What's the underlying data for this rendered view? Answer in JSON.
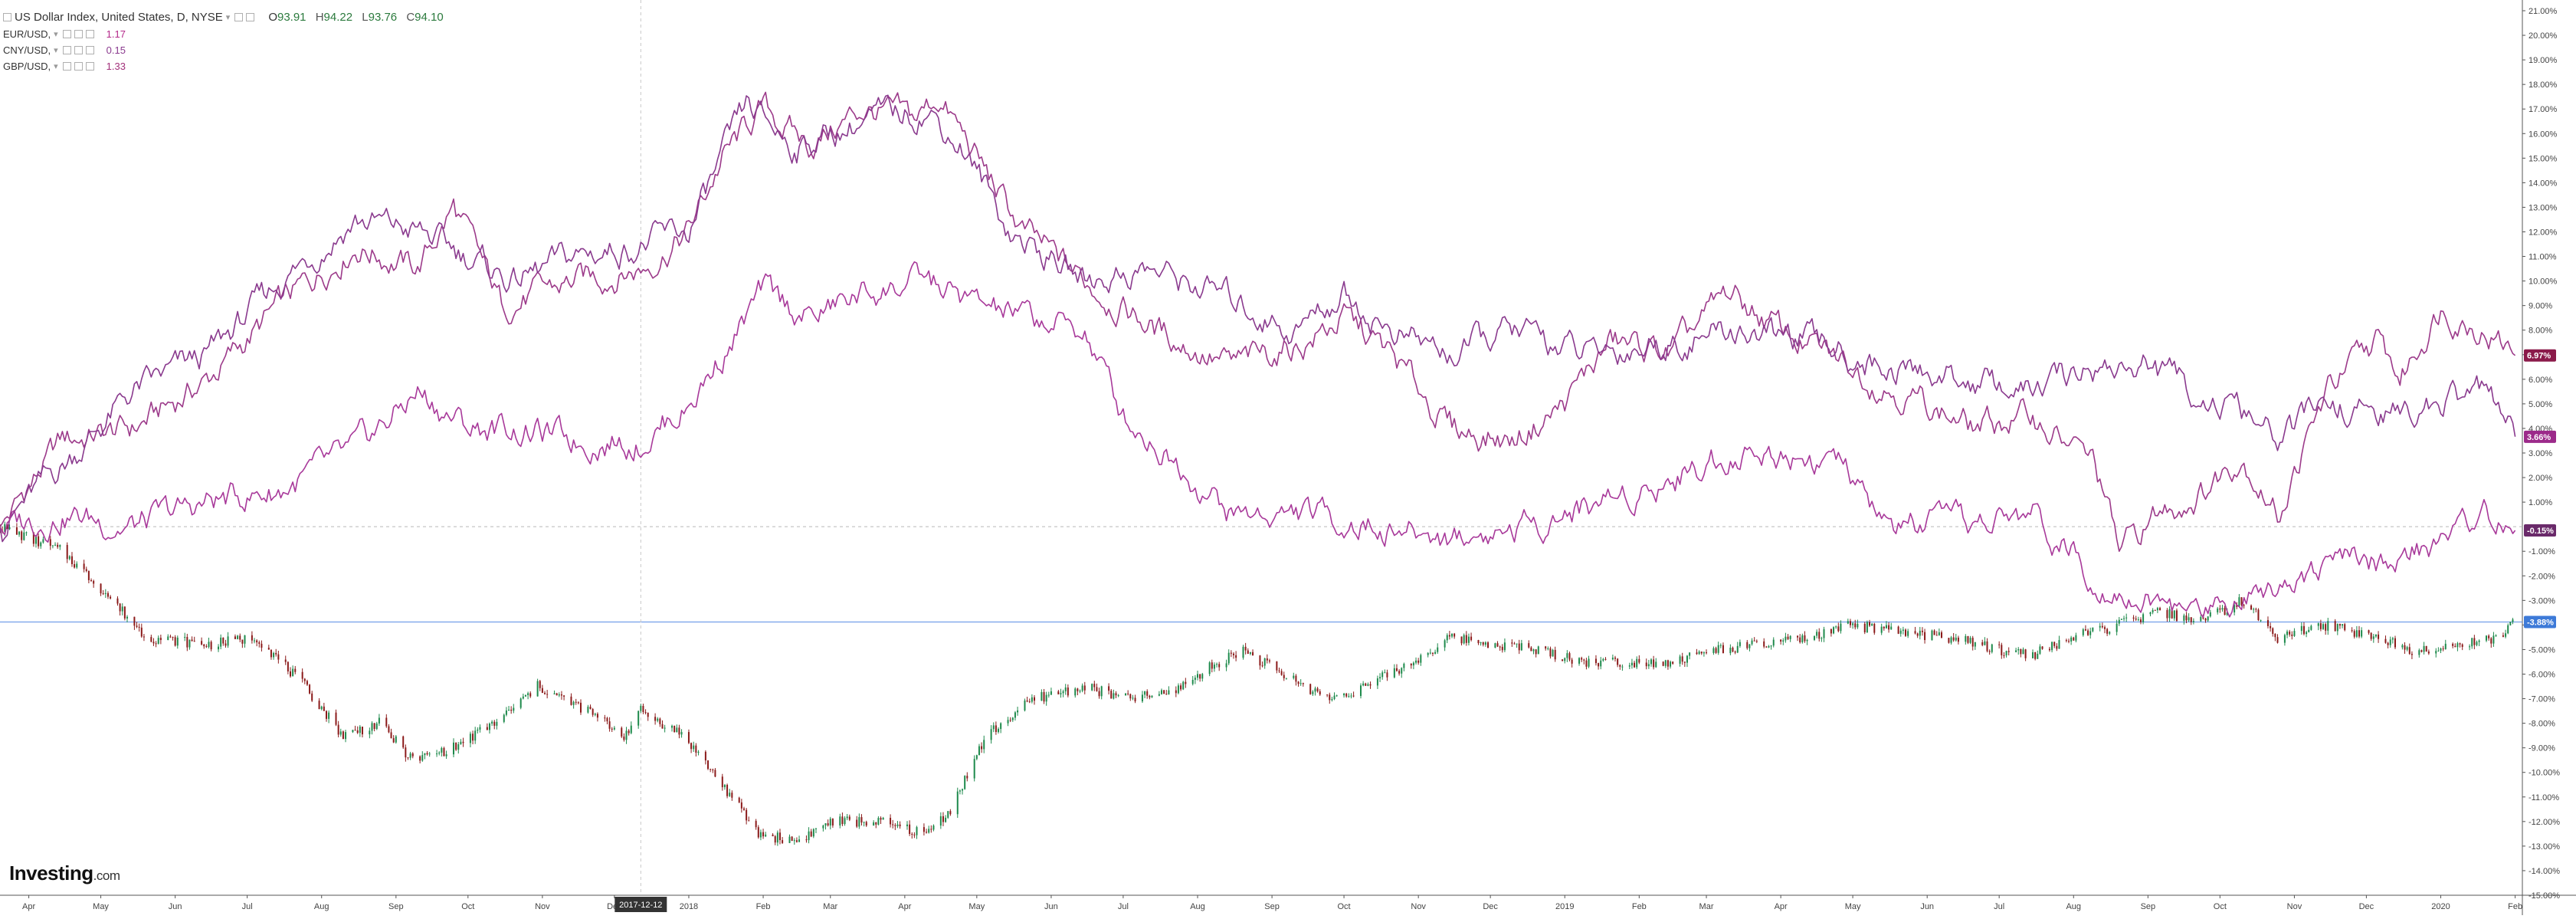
{
  "legend": {
    "main_title": "US Dollar Index, United States, D, NYSE",
    "ohlc": {
      "open_label": "O",
      "open": "93.91",
      "high_label": "H",
      "high": "94.22",
      "low_label": "L",
      "low": "93.76",
      "close_label": "C",
      "close": "94.10"
    },
    "items": [
      {
        "label": "EUR/USD,",
        "value": "1.17",
        "color": "#b4298a"
      },
      {
        "label": "CNY/USD,",
        "value": "0.15",
        "color": "#8a3a8e"
      },
      {
        "label": "GBP/USD,",
        "value": "1.33",
        "color": "#a2307a"
      }
    ]
  },
  "brand": {
    "name": "Investing",
    "suffix": ".com"
  },
  "crosshair": {
    "date_label": "2017-12-12"
  },
  "colors": {
    "up": "#1e8a4c",
    "down": "#8b1a1a",
    "series": [
      "#9c3a8a",
      "#8a3a8e",
      "#a8399a"
    ],
    "baseline": "#5b8ee6"
  },
  "chart_data": {
    "type": "line",
    "y_unit": "%",
    "ylim": [
      -15,
      21
    ],
    "y_ticks": [
      "21.00%",
      "20.00%",
      "19.00%",
      "18.00%",
      "17.00%",
      "16.00%",
      "15.00%",
      "14.00%",
      "13.00%",
      "12.00%",
      "11.00%",
      "10.00%",
      "9.00%",
      "8.00%",
      "7.00%",
      "6.00%",
      "5.00%",
      "4.00%",
      "3.00%",
      "2.00%",
      "1.00%",
      "-1.00%",
      "-2.00%",
      "-3.00%",
      "-4.00%",
      "-5.00%",
      "-6.00%",
      "-7.00%",
      "-8.00%",
      "-9.00%",
      "-10.00%",
      "-11.00%",
      "-12.00%",
      "-13.00%",
      "-14.00%",
      "-15.00%"
    ],
    "x_ticks": [
      "Apr",
      "May",
      "Jun",
      "Jul",
      "Aug",
      "Sep",
      "Oct",
      "Nov",
      "Dec",
      "2018",
      "Feb",
      "Mar",
      "Apr",
      "May",
      "Jun",
      "Jul",
      "Aug",
      "Sep",
      "Oct",
      "Nov",
      "Dec",
      "2019",
      "Feb",
      "Mar",
      "Apr",
      "May",
      "Jun",
      "Jul",
      "Aug",
      "Sep",
      "Oct",
      "Nov",
      "Dec",
      "2020",
      "Feb"
    ],
    "price_labels": [
      {
        "text": "6.97%",
        "value": 6.97,
        "color": "#8b1a4a"
      },
      {
        "text": "3.66%",
        "value": 3.66,
        "color": "#9c2a8a"
      },
      {
        "text": "-0.15%",
        "value": -0.15,
        "color": "#6a2a6a"
      },
      {
        "text": "-3.88%",
        "value": -3.88,
        "color": "#3d7ad8"
      }
    ],
    "series": [
      {
        "name": "GBP/USD",
        "style": "line",
        "x": [
          "2017-03-20",
          "2017-04-15",
          "2017-05-15",
          "2017-06-15",
          "2017-07-15",
          "2017-08-15",
          "2017-09-10",
          "2017-09-25",
          "2017-10-15",
          "2017-11-15",
          "2017-12-12",
          "2018-01-01",
          "2018-01-15",
          "2018-02-01",
          "2018-02-20",
          "2018-03-15",
          "2018-04-05",
          "2018-04-15",
          "2018-05-01",
          "2018-05-20",
          "2018-06-15",
          "2018-07-15",
          "2018-08-15",
          "2018-09-15",
          "2018-10-01",
          "2018-10-20",
          "2018-11-15",
          "2018-12-10",
          "2019-01-01",
          "2019-01-20",
          "2019-02-15",
          "2019-03-10",
          "2019-04-01",
          "2019-04-20",
          "2019-05-10",
          "2019-06-01",
          "2019-06-20",
          "2019-07-15",
          "2019-08-10",
          "2019-08-20",
          "2019-09-05",
          "2019-09-25",
          "2019-10-10",
          "2019-10-25",
          "2019-11-15",
          "2019-12-05",
          "2019-12-15",
          "2020-01-01",
          "2020-01-20",
          "2020-02-01"
        ],
        "values": [
          0.0,
          3.5,
          4.0,
          6.0,
          9.0,
          11.5,
          10.5,
          13.0,
          9.0,
          10.0,
          10.5,
          12.0,
          15.0,
          17.0,
          15.5,
          17.0,
          16.5,
          17.5,
          15.0,
          12.0,
          10.0,
          8.0,
          6.5,
          7.5,
          8.5,
          7.0,
          4.0,
          3.5,
          5.0,
          7.5,
          7.0,
          9.5,
          8.0,
          7.0,
          6.0,
          5.0,
          4.0,
          4.5,
          2.5,
          -1.0,
          0.5,
          1.5,
          3.0,
          0.5,
          5.5,
          7.5,
          6.0,
          9.0,
          8.0,
          6.97
        ]
      },
      {
        "name": "EUR/USD",
        "style": "line",
        "x": [
          "2017-03-20",
          "2017-04-15",
          "2017-05-15",
          "2017-06-15",
          "2017-07-15",
          "2017-08-15",
          "2017-09-10",
          "2017-10-01",
          "2017-10-20",
          "2017-11-15",
          "2017-12-12",
          "2018-01-01",
          "2018-01-25",
          "2018-02-15",
          "2018-03-15",
          "2018-04-10",
          "2018-04-25",
          "2018-05-15",
          "2018-06-15",
          "2018-07-10",
          "2018-08-10",
          "2018-09-10",
          "2018-10-01",
          "2018-10-20",
          "2018-11-15",
          "2018-12-10",
          "2019-01-10",
          "2019-02-10",
          "2019-03-15",
          "2019-04-15",
          "2019-05-15",
          "2019-06-15",
          "2019-07-15",
          "2019-08-10",
          "2019-09-01",
          "2019-09-20",
          "2019-10-10",
          "2019-10-25",
          "2019-11-15",
          "2019-12-10",
          "2020-01-01",
          "2020-01-20",
          "2020-02-01"
        ],
        "values": [
          0.0,
          2.5,
          5.5,
          7.0,
          10.0,
          12.5,
          12.0,
          11.0,
          10.0,
          11.0,
          11.5,
          12.0,
          17.0,
          15.5,
          16.5,
          17.0,
          15.5,
          12.0,
          10.0,
          10.5,
          9.5,
          8.0,
          9.5,
          8.0,
          7.0,
          8.0,
          7.0,
          7.5,
          8.0,
          7.5,
          6.5,
          6.0,
          5.5,
          6.5,
          6.5,
          5.5,
          4.5,
          3.5,
          5.0,
          4.5,
          5.0,
          5.5,
          3.66
        ]
      },
      {
        "name": "CNY/USD",
        "style": "line",
        "x": [
          "2017-03-20",
          "2017-04-15",
          "2017-05-15",
          "2017-06-15",
          "2017-07-15",
          "2017-08-15",
          "2017-09-10",
          "2017-10-01",
          "2017-10-20",
          "2017-11-15",
          "2017-12-12",
          "2018-01-01",
          "2018-02-01",
          "2018-02-20",
          "2018-03-15",
          "2018-04-10",
          "2018-05-01",
          "2018-05-20",
          "2018-06-15",
          "2018-07-01",
          "2018-07-20",
          "2018-08-15",
          "2018-09-15",
          "2018-10-15",
          "2018-11-15",
          "2018-12-15",
          "2019-01-15",
          "2019-02-15",
          "2019-03-10",
          "2019-04-10",
          "2019-04-25",
          "2019-05-15",
          "2019-06-15",
          "2019-07-15",
          "2019-08-10",
          "2019-09-01",
          "2019-09-20",
          "2019-10-15",
          "2019-11-15",
          "2019-12-15",
          "2020-01-01",
          "2020-01-20",
          "2020-02-01"
        ],
        "values": [
          0.0,
          0.5,
          0.0,
          1.0,
          1.5,
          3.0,
          5.5,
          4.0,
          4.0,
          3.5,
          3.5,
          5.0,
          9.5,
          8.5,
          9.5,
          10.0,
          9.0,
          8.5,
          8.0,
          4.5,
          3.0,
          0.5,
          0.5,
          0.0,
          -0.5,
          0.0,
          1.0,
          2.0,
          3.0,
          3.0,
          2.5,
          0.0,
          0.0,
          0.5,
          -2.0,
          -3.0,
          -3.5,
          -2.5,
          -1.5,
          -1.5,
          -0.5,
          0.5,
          -0.15
        ]
      },
      {
        "name": "US Dollar Index",
        "style": "candlestick",
        "x": [
          "2017-03-20",
          "2017-04-15",
          "2017-05-01",
          "2017-05-20",
          "2017-06-15",
          "2017-07-05",
          "2017-07-25",
          "2017-08-10",
          "2017-08-25",
          "2017-09-08",
          "2017-09-25",
          "2017-10-15",
          "2017-10-30",
          "2017-11-20",
          "2017-12-05",
          "2017-12-12",
          "2017-12-30",
          "2018-01-15",
          "2018-01-30",
          "2018-02-15",
          "2018-03-01",
          "2018-03-20",
          "2018-04-10",
          "2018-04-20",
          "2018-05-05",
          "2018-05-25",
          "2018-06-15",
          "2018-07-01",
          "2018-07-20",
          "2018-08-10",
          "2018-08-20",
          "2018-09-05",
          "2018-09-25",
          "2018-10-10",
          "2018-10-30",
          "2018-11-15",
          "2018-12-05",
          "2018-12-20",
          "2019-01-10",
          "2019-01-25",
          "2019-02-15",
          "2019-03-05",
          "2019-03-25",
          "2019-04-15",
          "2019-05-01",
          "2019-05-20",
          "2019-06-10",
          "2019-06-30",
          "2019-07-15",
          "2019-08-01",
          "2019-08-20",
          "2019-09-05",
          "2019-09-25",
          "2019-10-10",
          "2019-10-25",
          "2019-11-15",
          "2019-12-05",
          "2019-12-20",
          "2020-01-10",
          "2020-01-25",
          "2020-02-01"
        ],
        "values": [
          0.0,
          -1.0,
          -2.5,
          -4.5,
          -4.8,
          -4.5,
          -6.5,
          -8.5,
          -8.0,
          -9.5,
          -9.0,
          -7.8,
          -6.5,
          -7.5,
          -8.5,
          -7.5,
          -8.5,
          -10.5,
          -12.5,
          -12.8,
          -12.0,
          -12.0,
          -12.5,
          -11.5,
          -8.5,
          -7.0,
          -6.5,
          -7.0,
          -6.8,
          -5.5,
          -5.0,
          -6.0,
          -7.0,
          -6.5,
          -5.5,
          -4.5,
          -4.8,
          -5.0,
          -5.5,
          -5.5,
          -5.5,
          -5.0,
          -4.8,
          -4.5,
          -4.0,
          -4.3,
          -4.5,
          -5.0,
          -5.2,
          -4.5,
          -4.0,
          -3.5,
          -3.8,
          -3.0,
          -4.5,
          -4.0,
          -4.5,
          -5.0,
          -4.8,
          -4.5,
          -3.88
        ]
      }
    ],
    "baselines": [
      {
        "value": 0,
        "style": "dotted"
      },
      {
        "value": -3.88,
        "style": "solid"
      }
    ],
    "x_range": [
      "2017-03-20",
      "2020-02-04"
    ],
    "grid": false
  }
}
